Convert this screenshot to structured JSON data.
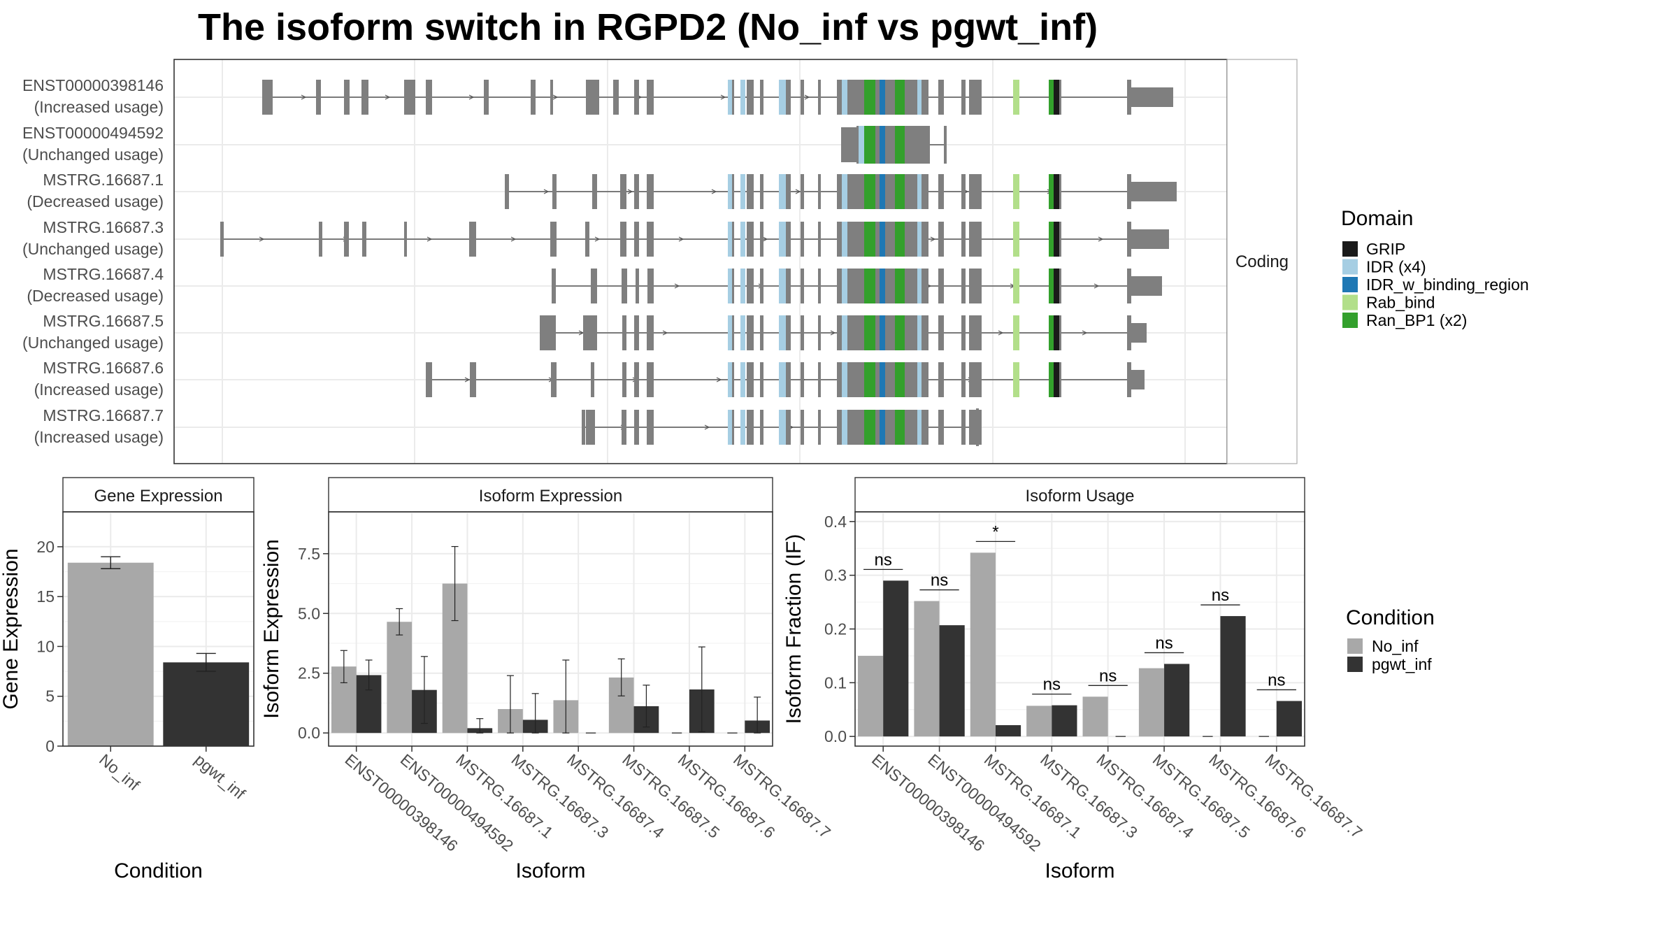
{
  "title": "The isoform switch in RGPD2 (No_inf vs pgwt_inf)",
  "colors": {
    "no_inf": "#a8a8a8",
    "pgwt_inf": "#333333",
    "exon": "#7f7f7f",
    "GRIP": "#1a1a1a",
    "IDR": "#a6cee3",
    "IDR_w_binding_region": "#1f78b4",
    "Rab_bind": "#b2df8a",
    "Ran_BP1": "#33a02c"
  },
  "structure": {
    "facet_label": "Coding",
    "isoforms": [
      {
        "id": "ENST00000398146",
        "usage": "(Increased usage)"
      },
      {
        "id": "ENST00000494592",
        "usage": "(Unchanged usage)"
      },
      {
        "id": "MSTRG.16687.1",
        "usage": "(Decreased usage)"
      },
      {
        "id": "MSTRG.16687.3",
        "usage": "(Unchanged usage)"
      },
      {
        "id": "MSTRG.16687.4",
        "usage": "(Decreased usage)"
      },
      {
        "id": "MSTRG.16687.5",
        "usage": "(Unchanged usage)"
      },
      {
        "id": "MSTRG.16687.6",
        "usage": "(Increased usage)"
      },
      {
        "id": "MSTRG.16687.7",
        "usage": "(Increased usage)"
      }
    ],
    "domain_legend": {
      "title": "Domain",
      "items": [
        {
          "key": "GRIP",
          "label": "GRIP"
        },
        {
          "key": "IDR",
          "label": "IDR (x4)"
        },
        {
          "key": "IDR_w_binding_region",
          "label": "IDR_w_binding_region"
        },
        {
          "key": "Rab_bind",
          "label": "Rab_bind"
        },
        {
          "key": "Ran_BP1",
          "label": "Ran_BP1 (x2)"
        }
      ]
    }
  },
  "condition_legend": {
    "title": "Condition",
    "items": [
      {
        "key": "no_inf",
        "label": "No_inf"
      },
      {
        "key": "pgwt_inf",
        "label": "pgwt_inf"
      }
    ]
  },
  "chart_data": [
    {
      "type": "bar",
      "title": "Gene Expression",
      "xlabel": "Condition",
      "ylabel": "Gene Expression",
      "categories": [
        "No_inf",
        "pgwt_inf"
      ],
      "values": [
        18.4,
        8.4
      ],
      "errors": [
        [
          17.8,
          19.0
        ],
        [
          7.5,
          9.3
        ]
      ],
      "ylim": [
        0,
        23.5
      ],
      "yticks": [
        0,
        5,
        10,
        15,
        20
      ]
    },
    {
      "type": "bar",
      "title": "Isoform Expression",
      "xlabel": "Isoform",
      "ylabel": "Isoform Expression",
      "categories": [
        "ENST00000398146",
        "ENST00000494592",
        "MSTRG.16687.1",
        "MSTRG.16687.3",
        "MSTRG.16687.4",
        "MSTRG.16687.5",
        "MSTRG.16687.6",
        "MSTRG.16687.7"
      ],
      "ylim": [
        -0.55,
        9.25
      ],
      "yticks": [
        "0.0",
        "2.5",
        "5.0",
        "7.5"
      ],
      "series": [
        {
          "name": "No_inf",
          "values": [
            2.78,
            4.65,
            6.25,
            1.0,
            1.37,
            2.32,
            0.0,
            0.0
          ],
          "errors": [
            [
              2.1,
              3.45
            ],
            [
              4.1,
              5.2
            ],
            [
              4.7,
              7.8
            ],
            [
              0.0,
              2.4
            ],
            [
              0.0,
              3.05
            ],
            [
              1.55,
              3.1
            ],
            null,
            null
          ]
        },
        {
          "name": "pgwt_inf",
          "values": [
            2.42,
            1.8,
            0.2,
            0.55,
            0.0,
            1.12,
            1.82,
            0.52
          ],
          "errors": [
            [
              1.8,
              3.05
            ],
            [
              0.4,
              3.2
            ],
            [
              0.0,
              0.6
            ],
            [
              0.0,
              1.65
            ],
            null,
            [
              0.25,
              2.0
            ],
            [
              0.05,
              3.6
            ],
            [
              0.0,
              1.5
            ]
          ]
        }
      ]
    },
    {
      "type": "bar",
      "title": "Isoform Usage",
      "xlabel": "Isoform",
      "ylabel": "Isoform Fraction (IF)",
      "categories": [
        "ENST00000398146",
        "ENST00000494592",
        "MSTRG.16687.1",
        "MSTRG.16687.3",
        "MSTRG.16687.4",
        "MSTRG.16687.5",
        "MSTRG.16687.6",
        "MSTRG.16687.7"
      ],
      "ylim": [
        -0.018,
        0.418
      ],
      "yticks": [
        "0.0",
        "0.1",
        "0.2",
        "0.3",
        "0.4"
      ],
      "series": [
        {
          "name": "No_inf",
          "values": [
            0.15,
            0.252,
            0.342,
            0.057,
            0.074,
            0.127,
            0.0,
            0.0
          ]
        },
        {
          "name": "pgwt_inf",
          "values": [
            0.29,
            0.207,
            0.021,
            0.058,
            0.0,
            0.135,
            0.224,
            0.066
          ]
        }
      ],
      "significance": [
        "ns",
        "ns",
        "*",
        "ns",
        "ns",
        "ns",
        "ns",
        "ns"
      ]
    }
  ]
}
